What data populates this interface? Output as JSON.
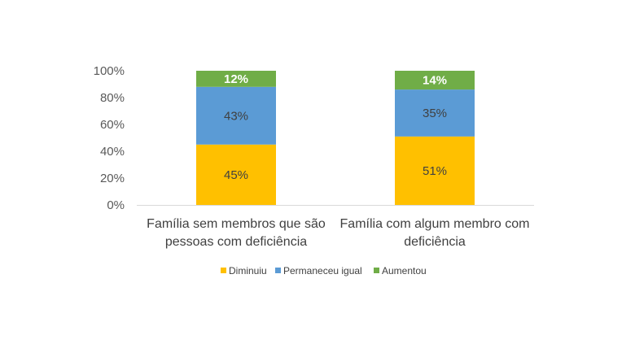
{
  "chart_data": {
    "type": "bar",
    "stacked": true,
    "categories": [
      [
        "Família sem membros que são",
        "pessoas com deficiência"
      ],
      [
        "Família com algum membro com",
        "deficiência"
      ]
    ],
    "series": [
      {
        "name": "Diminuiu",
        "color": "#FFC000",
        "values": [
          45,
          51
        ],
        "labels": [
          "45%",
          "51%"
        ],
        "label_color": "#404040",
        "label_bold": false
      },
      {
        "name": "Permaneceu igual",
        "color": "#5B9BD5",
        "values": [
          43,
          35
        ],
        "labels": [
          "43%",
          "35%"
        ],
        "label_color": "#404040",
        "label_bold": false
      },
      {
        "name": "Aumentou",
        "color": "#70AD47",
        "values": [
          12,
          14
        ],
        "labels": [
          "12%",
          "14%"
        ],
        "label_color": "#ffffff",
        "label_bold": true
      }
    ],
    "y_ticks": [
      "0%",
      "20%",
      "40%",
      "60%",
      "80%",
      "100%"
    ],
    "ylim": [
      0,
      100
    ],
    "grid": false,
    "legend_position": "bottom",
    "title": "",
    "xlabel": "",
    "ylabel": ""
  }
}
